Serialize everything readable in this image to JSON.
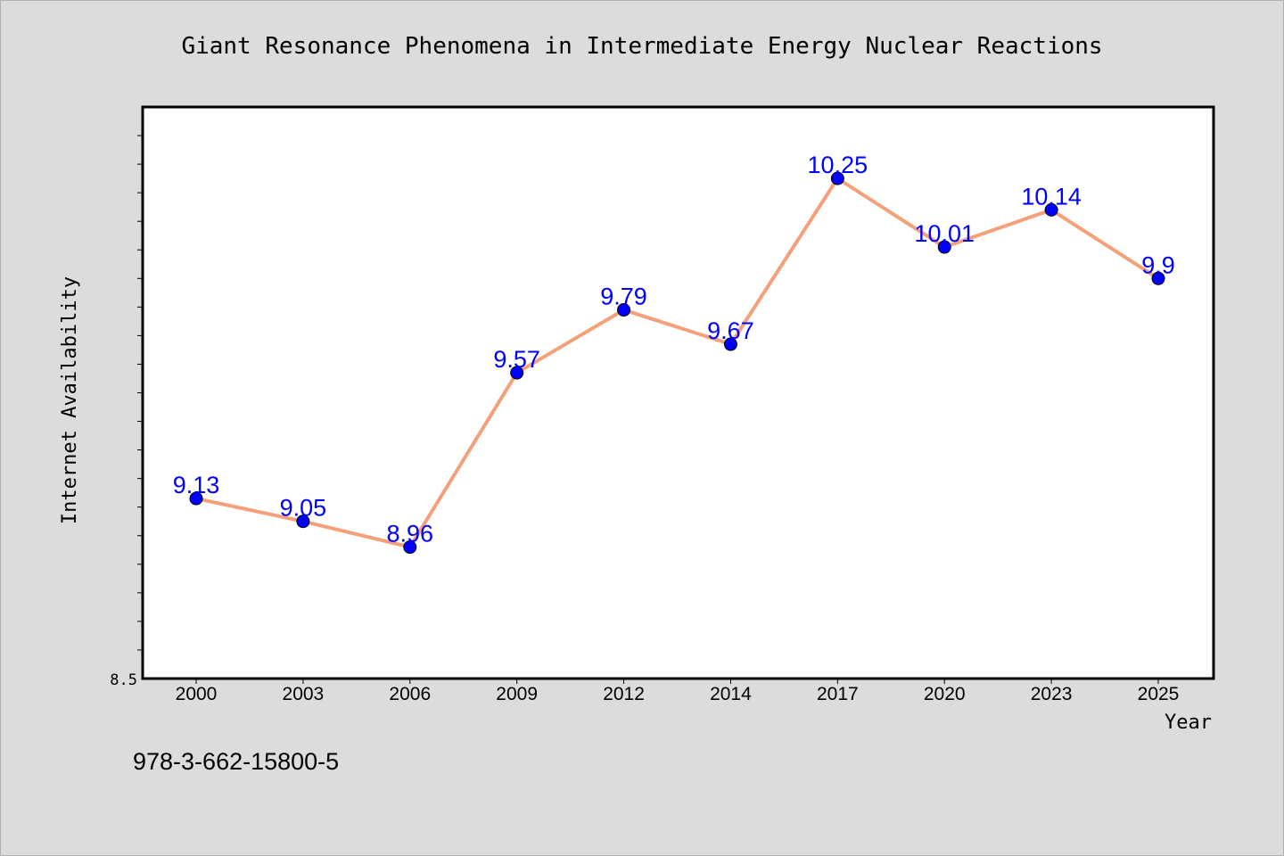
{
  "chart_data": {
    "type": "line",
    "title": "Giant Resonance Phenomena in Intermediate Energy Nuclear Reactions",
    "xlabel": "Year",
    "ylabel": "Internet Availability",
    "categories": [
      "2000",
      "2003",
      "2006",
      "2009",
      "2012",
      "2014",
      "2017",
      "2020",
      "2023",
      "2025"
    ],
    "series": [
      {
        "values": [
          9.13,
          9.05,
          8.96,
          9.57,
          9.79,
          9.67,
          10.25,
          10.01,
          10.14,
          9.9
        ]
      }
    ],
    "data_labels": [
      "9.13",
      "9.05",
      "8.96",
      "9.57",
      "9.79",
      "9.67",
      "10.25",
      "10.01",
      "10.14",
      "9.9"
    ],
    "ylim": [
      8.5,
      10.5
    ],
    "y_tick_labels": [
      "8.5"
    ],
    "grid": false,
    "legend": "none",
    "colors": {
      "line": "#f4a07a",
      "marker": "#0000ff",
      "data_label": "#0000ff",
      "plot_background": "#ffffff",
      "page_background": "#dcdcdc"
    }
  },
  "footer": {
    "isbn": "978-3-662-15800-5"
  }
}
